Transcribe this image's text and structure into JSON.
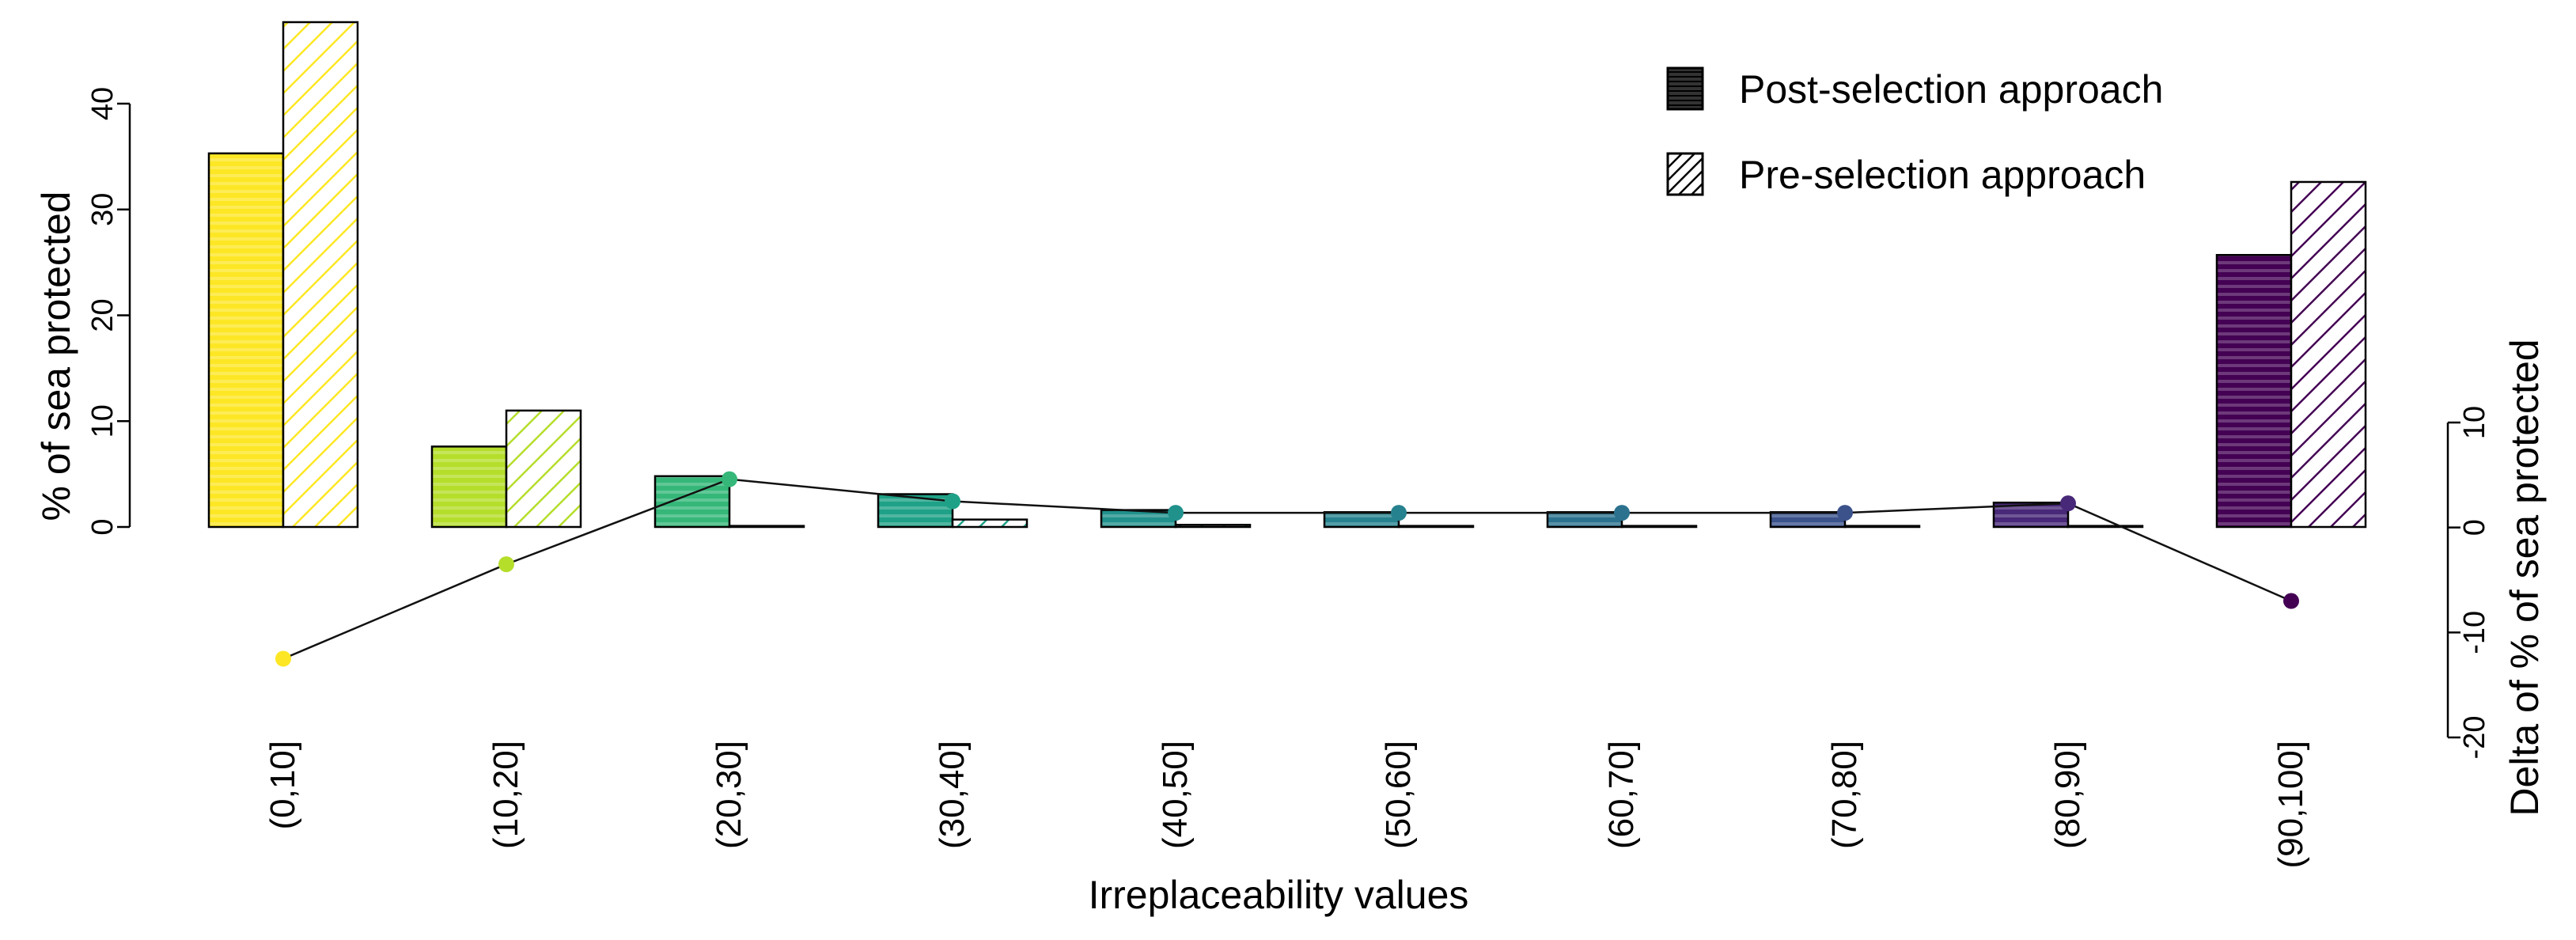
{
  "chart_data": {
    "type": "bar",
    "categories": [
      "(0,10]",
      "(10,20]",
      "(20,30]",
      "(30,40]",
      "(40,50]",
      "(50,60]",
      "(60,70]",
      "(70,80]",
      "(80,90]",
      "(90,100]"
    ],
    "series": [
      {
        "name": "Post-selection approach",
        "pattern": "horizontal-stripes",
        "values": [
          35.3,
          7.6,
          4.8,
          3.1,
          1.6,
          1.4,
          1.4,
          1.4,
          2.3,
          25.7
        ]
      },
      {
        "name": "Pre-selection approach",
        "pattern": "diagonal-hatch",
        "values": [
          47.7,
          11.0,
          0.1,
          0.7,
          0.2,
          0.1,
          0.1,
          0.1,
          0.1,
          32.6
        ]
      }
    ],
    "delta_line": {
      "values": [
        -12.5,
        -3.5,
        4.6,
        2.5,
        1.4,
        1.4,
        1.4,
        1.4,
        2.3,
        -7.0
      ],
      "ylabel": "Delta of % of sea protected",
      "ylim": [
        -20,
        10
      ],
      "yticks": [
        -20,
        -10,
        0,
        10
      ]
    },
    "bar_colors": [
      "#fde725",
      "#b5de2b",
      "#35b779",
      "#1fa187",
      "#21918c",
      "#26828e",
      "#2c728e",
      "#3b528b",
      "#482878",
      "#440154"
    ],
    "left_axis": {
      "ylabel": "% of sea protected",
      "ylim": [
        0,
        47.7
      ],
      "yticks": [
        0,
        10,
        20,
        30,
        40
      ]
    },
    "xlabel": "Irreplaceability values",
    "legend": {
      "position": "top-right",
      "entries": [
        "Post-selection approach",
        "Pre-selection approach"
      ]
    },
    "title": "",
    "grid": false
  }
}
